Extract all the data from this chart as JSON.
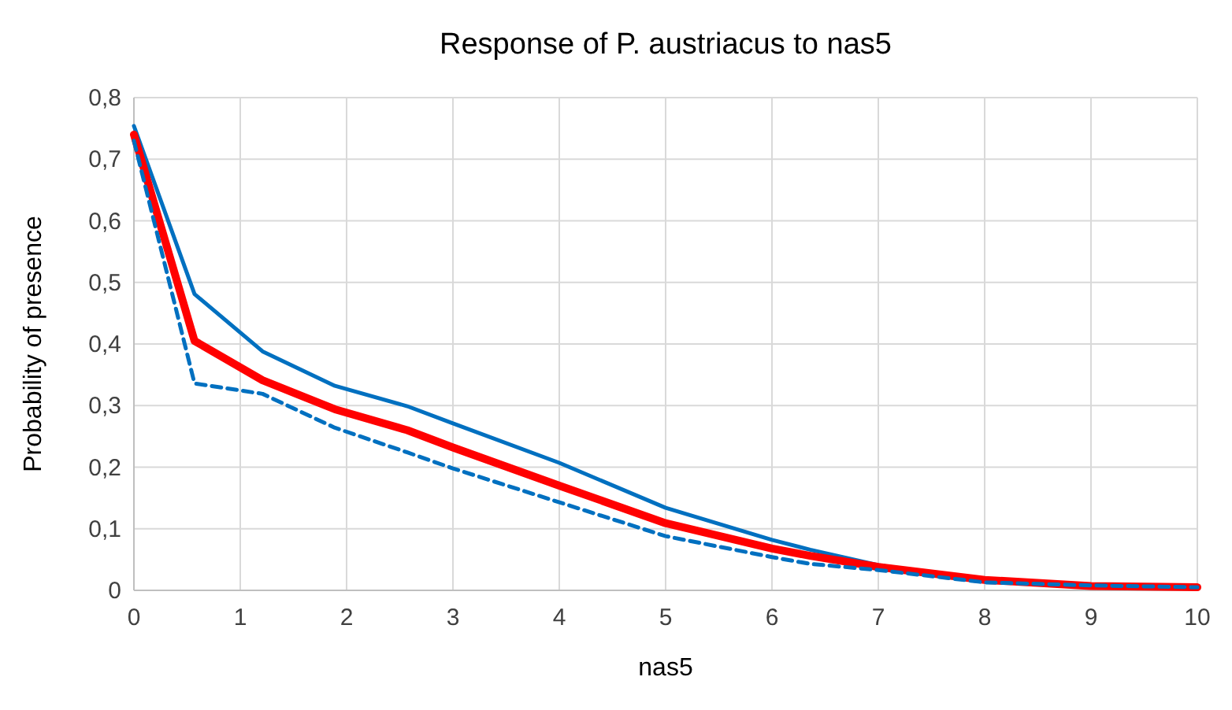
{
  "chart_data": {
    "type": "line",
    "title": "Response of P. austriacus to nas5",
    "xlabel": "nas5",
    "ylabel": "Probability of presence",
    "xlim": [
      0,
      10
    ],
    "xticks": [
      0,
      1,
      2,
      3,
      4,
      5,
      6,
      7,
      8,
      9,
      10
    ],
    "ylim": [
      0,
      0.8
    ],
    "yticks": [
      {
        "value": 0,
        "label": "0"
      },
      {
        "value": 0.1,
        "label": "0,1"
      },
      {
        "value": 0.2,
        "label": "0,2"
      },
      {
        "value": 0.3,
        "label": "0,3"
      },
      {
        "value": 0.4,
        "label": "0,4"
      },
      {
        "value": 0.5,
        "label": "0,5"
      },
      {
        "value": 0.6,
        "label": "0,6"
      },
      {
        "value": 0.7,
        "label": "0,7"
      },
      {
        "value": 0.8,
        "label": "0,8"
      }
    ],
    "grid": true,
    "x": [
      0,
      0.57,
      1.21,
      1.89,
      2.57,
      3,
      4,
      5,
      6,
      6.36,
      7,
      8,
      9,
      10
    ],
    "series": [
      {
        "color": "#0070c0",
        "line_style": "solid",
        "values": [
          0.754,
          0.481,
          0.388,
          0.332,
          0.299,
          0.271,
          0.207,
          0.134,
          0.082,
          0.066,
          0.041,
          0.015,
          0.008,
          0.005
        ]
      },
      {
        "color": "#ff0000",
        "line_style": "solid",
        "values": [
          0.74,
          0.405,
          0.341,
          0.294,
          0.26,
          0.232,
          0.17,
          0.109,
          0.068,
          0.056,
          0.038,
          0.017,
          0.007,
          0.005
        ]
      },
      {
        "color": "#0070c0",
        "line_style": "dashed",
        "values": [
          0.73,
          0.336,
          0.319,
          0.264,
          0.224,
          0.198,
          0.143,
          0.088,
          0.054,
          0.043,
          0.033,
          0.013,
          0.008,
          0.005
        ]
      }
    ]
  }
}
